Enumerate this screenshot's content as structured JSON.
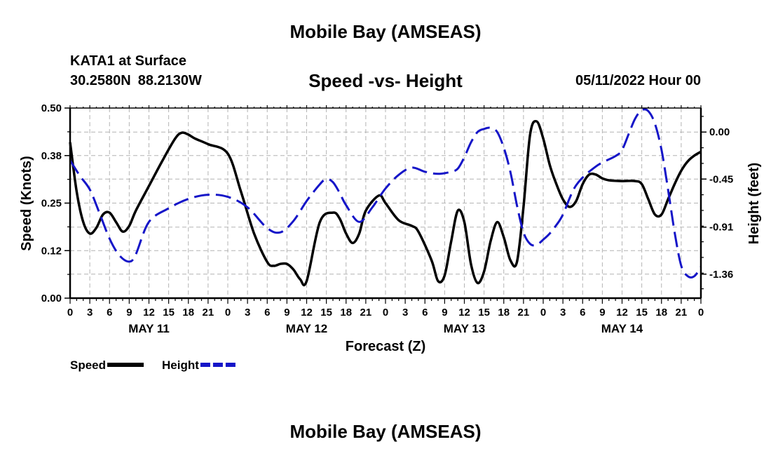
{
  "page": {
    "title": "Mobile Bay (AMSEAS)",
    "station": "KATA1 at Surface",
    "latitude": "30.2580N",
    "longitude": "88.2130W",
    "datetime": "05/11/2022 Hour 00",
    "bottom_title": "Mobile Bay (AMSEAS)"
  },
  "chart_data": {
    "type": "line",
    "title": "Speed -vs- Height",
    "xlabel": "Forecast (Z)",
    "ylabel": "Speed (Knots)",
    "y2label": "Height (feet)",
    "x_range_hours": [
      0,
      96
    ],
    "x_tick_step_hours": 3,
    "x_tick_labels": [
      "0",
      "3",
      "6",
      "9",
      "12",
      "15",
      "18",
      "21",
      "0",
      "3",
      "6",
      "9",
      "12",
      "15",
      "18",
      "21",
      "0",
      "3",
      "6",
      "9",
      "12",
      "15",
      "18",
      "21",
      "0",
      "3",
      "6",
      "9",
      "12",
      "15",
      "18",
      "21",
      "0"
    ],
    "day_labels": [
      {
        "label": "MAY 11",
        "hour": 12
      },
      {
        "label": "MAY 12",
        "hour": 36
      },
      {
        "label": "MAY 13",
        "hour": 60
      },
      {
        "label": "MAY 14",
        "hour": 84
      }
    ],
    "y_left": {
      "range": [
        0,
        0.5
      ],
      "ticks": [
        0.0,
        0.125,
        0.25,
        0.375,
        0.5
      ],
      "tick_labels": [
        "0.00",
        "0.12",
        "0.25",
        "0.38",
        "0.50"
      ]
    },
    "y_right": {
      "range": [
        -1.59,
        0.23
      ],
      "ticks": [
        0.0,
        -0.45,
        -0.91,
        -1.36
      ],
      "tick_labels": [
        "0.00",
        "-0.45",
        "-0.91",
        "-1.36"
      ]
    },
    "legend": {
      "position": "bottom-left"
    },
    "series": [
      {
        "name": "Speed",
        "axis": "left",
        "color": "#000000",
        "style": "solid",
        "x": [
          0,
          1,
          2,
          3,
          4,
          5,
          6,
          7,
          8,
          9,
          10,
          12,
          14,
          16,
          17,
          18,
          19,
          21,
          24,
          26,
          28,
          30,
          31,
          32,
          33,
          34,
          35,
          36,
          38,
          40,
          41,
          42,
          43,
          44,
          45,
          47,
          48,
          50,
          52,
          53,
          55,
          56,
          57,
          58,
          59,
          60,
          61,
          62,
          63,
          64,
          65,
          66,
          67,
          68,
          69,
          70,
          71,
          72,
          73,
          74,
          75,
          76,
          77,
          78,
          79,
          80,
          81,
          82,
          84,
          86,
          87,
          88,
          89,
          90,
          91,
          92,
          93,
          94,
          95,
          96
        ],
        "y": [
          0.41,
          0.28,
          0.2,
          0.17,
          0.185,
          0.22,
          0.225,
          0.2,
          0.175,
          0.19,
          0.23,
          0.295,
          0.36,
          0.42,
          0.435,
          0.43,
          0.42,
          0.405,
          0.38,
          0.28,
          0.17,
          0.095,
          0.085,
          0.09,
          0.09,
          0.075,
          0.05,
          0.045,
          0.2,
          0.225,
          0.21,
          0.17,
          0.145,
          0.17,
          0.23,
          0.27,
          0.25,
          0.205,
          0.19,
          0.175,
          0.1,
          0.045,
          0.06,
          0.15,
          0.23,
          0.2,
          0.09,
          0.04,
          0.07,
          0.15,
          0.2,
          0.16,
          0.1,
          0.095,
          0.24,
          0.43,
          0.465,
          0.42,
          0.35,
          0.3,
          0.26,
          0.24,
          0.255,
          0.3,
          0.325,
          0.325,
          0.315,
          0.31,
          0.308,
          0.308,
          0.3,
          0.26,
          0.22,
          0.22,
          0.26,
          0.3,
          0.335,
          0.36,
          0.375,
          0.385
        ]
      },
      {
        "name": "Height",
        "axis": "right",
        "color": "#1515c8",
        "style": "dashed",
        "x": [
          0,
          1.5,
          3,
          4.5,
          6,
          7.5,
          9,
          10,
          12,
          15,
          18,
          21,
          24,
          27,
          30,
          32,
          34,
          36,
          38,
          39,
          40,
          41,
          42,
          44,
          46,
          48,
          50,
          52,
          54,
          56,
          58,
          59,
          60,
          61,
          62,
          63,
          64,
          65,
          66,
          67,
          68,
          69,
          70,
          71,
          72,
          73,
          74,
          75,
          77,
          80,
          83,
          84,
          85,
          86,
          87,
          88,
          89,
          90,
          91,
          92,
          93,
          94,
          95,
          96
        ],
        "y": [
          -0.27,
          -0.42,
          -0.55,
          -0.78,
          -1.02,
          -1.18,
          -1.24,
          -1.17,
          -0.86,
          -0.73,
          -0.64,
          -0.6,
          -0.62,
          -0.72,
          -0.92,
          -0.96,
          -0.85,
          -0.66,
          -0.5,
          -0.45,
          -0.48,
          -0.58,
          -0.7,
          -0.86,
          -0.72,
          -0.54,
          -0.41,
          -0.34,
          -0.38,
          -0.4,
          -0.38,
          -0.35,
          -0.24,
          -0.1,
          0.0,
          0.03,
          0.04,
          0.0,
          -0.15,
          -0.38,
          -0.7,
          -0.96,
          -1.07,
          -1.08,
          -1.03,
          -0.97,
          -0.89,
          -0.79,
          -0.51,
          -0.33,
          -0.23,
          -0.17,
          -0.02,
          0.13,
          0.21,
          0.2,
          0.08,
          -0.17,
          -0.55,
          -0.96,
          -1.28,
          -1.38,
          -1.38,
          -1.29
        ]
      }
    ]
  }
}
